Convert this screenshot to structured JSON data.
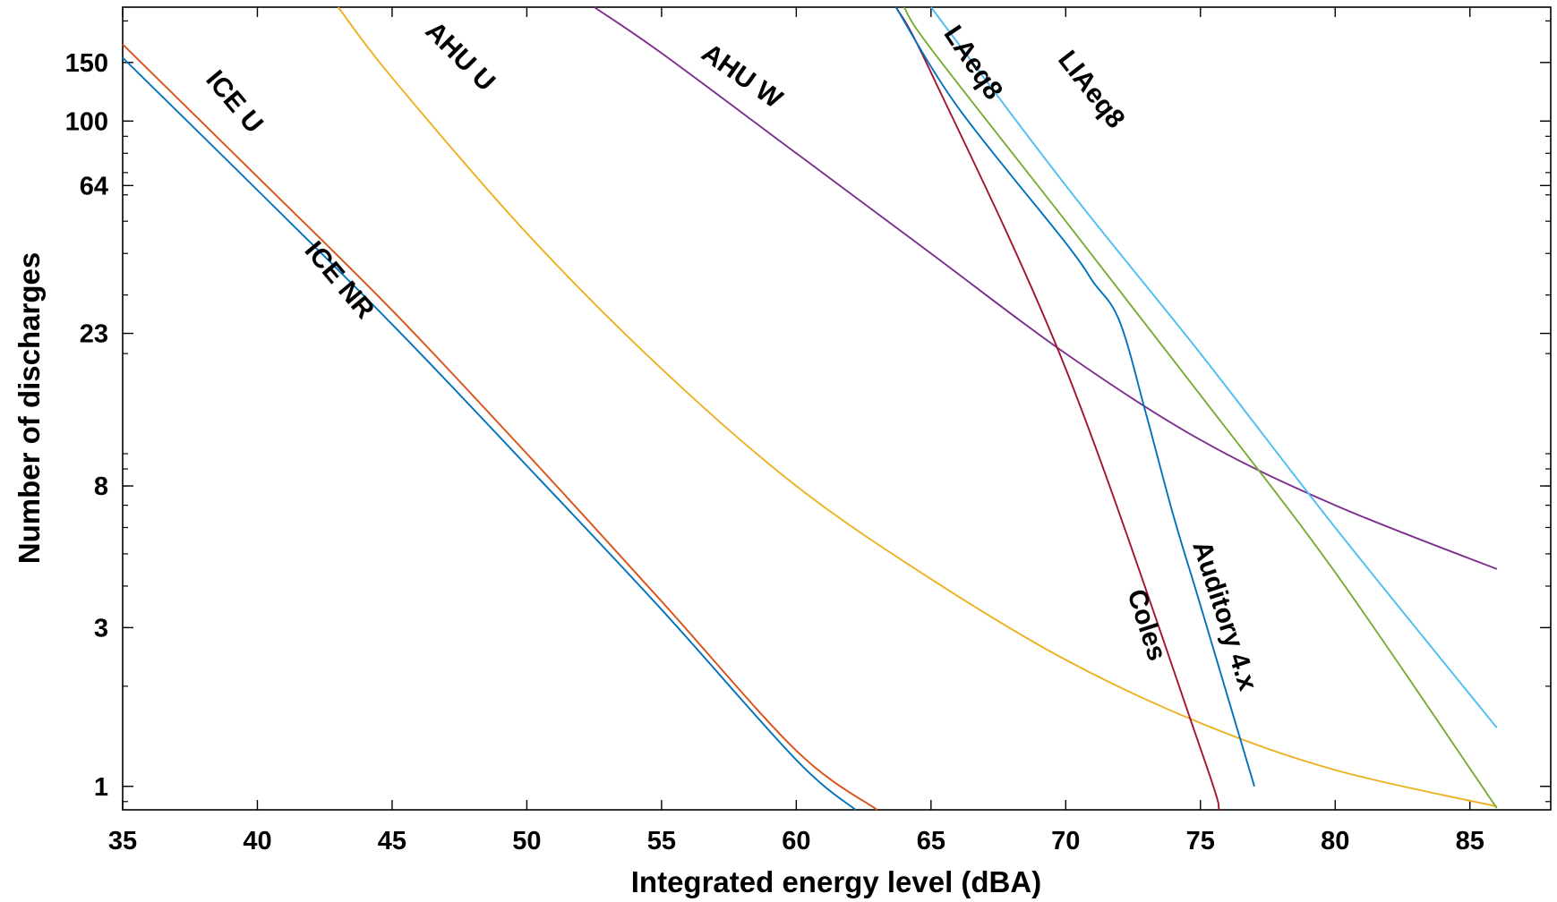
{
  "chart_data": {
    "type": "line",
    "title": "",
    "xlabel": "Integrated energy level (dBA)",
    "ylabel": "Number of discharges",
    "xlim": [
      35,
      88
    ],
    "ylim": [
      0.85,
      220
    ],
    "yscale": "log",
    "xticks": [
      35,
      40,
      45,
      50,
      55,
      60,
      65,
      70,
      75,
      80,
      85
    ],
    "yticks": [
      1,
      3,
      8,
      23,
      64,
      100,
      150
    ],
    "grid": false,
    "legend": "none",
    "series": [
      {
        "name": "ICE NR",
        "color": "#0072BD",
        "x": [
          35,
          40,
          45,
          50,
          55,
          60,
          62.2
        ],
        "y": [
          155,
          62,
          24.5,
          9.2,
          3.4,
          1.2,
          0.85
        ]
      },
      {
        "name": "ICE U",
        "color": "#D95319",
        "x": [
          35,
          40,
          45,
          50,
          55,
          60,
          63
        ],
        "y": [
          170,
          68,
          27,
          10,
          3.6,
          1.28,
          0.85
        ]
      },
      {
        "name": "AHU U",
        "color": "#EDB120",
        "x": [
          43,
          45,
          50,
          55,
          60,
          65,
          70,
          75,
          80,
          86
        ],
        "y": [
          220,
          135,
          46,
          18,
          8,
          4.2,
          2.4,
          1.55,
          1.12,
          0.87
        ]
      },
      {
        "name": "AHU W",
        "color": "#7E2F8E",
        "x": [
          52.5,
          55,
          60,
          65,
          70,
          75,
          80,
          86
        ],
        "y": [
          220,
          160,
          80,
          40,
          20,
          11,
          7,
          4.5
        ]
      },
      {
        "name": "LAeq8",
        "color": "#77AC30",
        "x": [
          64,
          65,
          70,
          75,
          80,
          86
        ],
        "y": [
          220,
          165,
          50,
          15,
          4.4,
          0.86
        ]
      },
      {
        "name": "LIAeq8",
        "color": "#4DBEEE",
        "x": [
          65,
          70,
          75,
          80,
          86
        ],
        "y": [
          220,
          64,
          20,
          6,
          1.5
        ]
      },
      {
        "name": "Coles",
        "color": "#A2142F",
        "x": [
          63.7,
          65,
          70,
          75,
          75.7
        ],
        "y": [
          220,
          140,
          18,
          1.3,
          0.85
        ]
      },
      {
        "name": "Auditory 4.x",
        "color": "#0072BD",
        "x": [
          63.7,
          66,
          70,
          71,
          72,
          73,
          74,
          75,
          77
        ],
        "y": [
          220,
          110,
          43,
          33,
          25,
          13,
          6.5,
          3.5,
          1
        ]
      }
    ],
    "annotations": [
      {
        "text": "ICE U",
        "x": 38.9,
        "y": 110,
        "angle": 50
      },
      {
        "text": "ICE NR",
        "x": 42.8,
        "y": 32,
        "angle": 50
      },
      {
        "text": "AHU U",
        "x": 47.3,
        "y": 150,
        "angle": 45
      },
      {
        "text": "AHU W",
        "x": 57.8,
        "y": 130,
        "angle": 35
      },
      {
        "text": "LAeq8",
        "x": 66.3,
        "y": 145,
        "angle": 56
      },
      {
        "text": "LIAeq8",
        "x": 70.7,
        "y": 120,
        "angle": 52
      },
      {
        "text": "Coles",
        "x": 72.7,
        "y": 3,
        "angle": 72
      },
      {
        "text": "Auditory 4.x",
        "x": 75.6,
        "y": 3.2,
        "angle": 72
      }
    ]
  }
}
